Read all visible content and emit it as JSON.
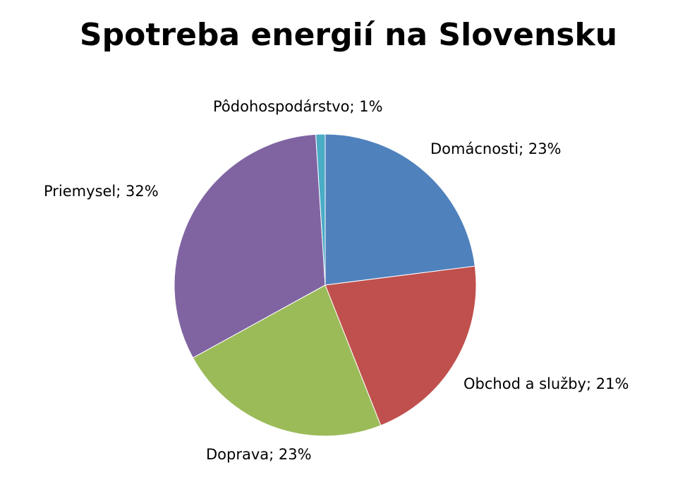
{
  "chart_data": {
    "type": "pie",
    "title": "Spotreba energií na Slovensku",
    "categories": [
      "Domácnosti",
      "Obchod a služby",
      "Doprava",
      "Priemysel",
      "Pôdohospodárstvo"
    ],
    "values": [
      23,
      21,
      23,
      32,
      1
    ],
    "value_labels": [
      "23%",
      "21%",
      "23%",
      "32%",
      "1%"
    ],
    "label_separator": "; ",
    "colors": [
      "#4f81bd",
      "#c0504d",
      "#9bbb59",
      "#8064a2",
      "#4bacc6"
    ]
  }
}
